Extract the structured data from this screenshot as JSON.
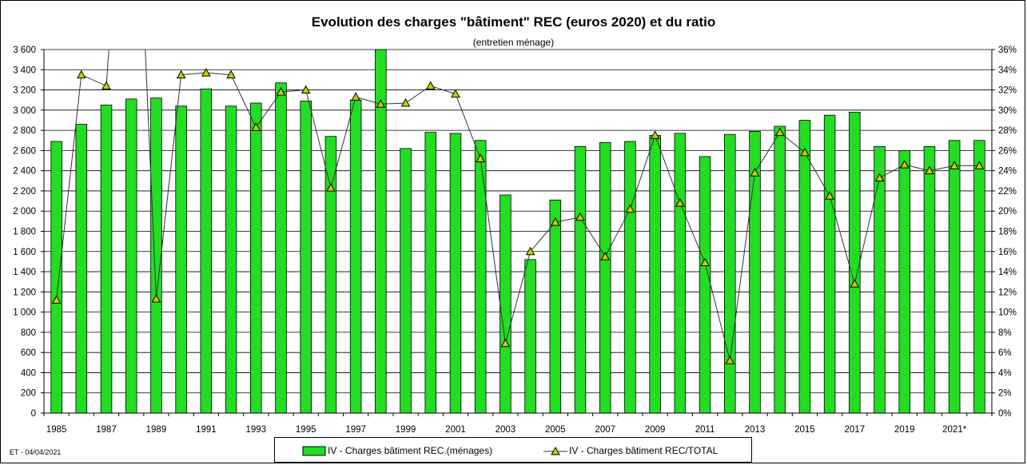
{
  "chart_data": {
    "type": "bar",
    "title": "Evolution des charges \"bâtiment\"  REC (euros 2020) et du ratio",
    "subtitle": "(entretien ménage)",
    "categories": [
      "1985",
      "1986",
      "1987",
      "1988",
      "1989",
      "1990",
      "1991",
      "1992",
      "1993",
      "1994",
      "1995",
      "1996",
      "1997",
      "1998",
      "1999",
      "2000",
      "2001",
      "2002",
      "2003",
      "2004",
      "2005",
      "2006",
      "2007",
      "2008",
      "2009",
      "2010",
      "2011",
      "2012",
      "2013",
      "2014",
      "2015",
      "2016",
      "2017",
      "2018",
      "2019",
      "2020",
      "2021*",
      "2022"
    ],
    "x_tick_labels": [
      "1985",
      "1987",
      "1989",
      "1991",
      "1993",
      "1995",
      "1997",
      "1999",
      "2001",
      "2003",
      "2005",
      "2007",
      "2009",
      "2011",
      "2013",
      "2015",
      "2017",
      "2019",
      "2021*"
    ],
    "series": [
      {
        "name": "IV - Charges  bâtiment REC.(ménages)",
        "type": "bar",
        "axis": "left",
        "color": "#22dd22",
        "values": [
          2690,
          2860,
          3050,
          3110,
          3120,
          3040,
          3210,
          3040,
          3070,
          3270,
          3090,
          2740,
          3100,
          3600,
          2620,
          2780,
          2770,
          2700,
          2160,
          1520,
          2110,
          2640,
          2680,
          2690,
          2750,
          2770,
          2540,
          2760,
          2790,
          2840,
          2900,
          2950,
          2980,
          2640,
          2600,
          2640,
          2700,
          2700
        ]
      },
      {
        "name": "IV - Charges  bâtiment REC/TOTAL",
        "type": "line",
        "axis": "right",
        "color": "#333333",
        "marker_color": "#cccc00",
        "values": [
          11.2,
          33.5,
          32.4,
          null,
          11.3,
          33.5,
          33.7,
          33.5,
          28.3,
          31.8,
          32.0,
          22.3,
          31.3,
          30.6,
          30.7,
          32.4,
          31.6,
          25.2,
          6.9,
          16.0,
          18.9,
          19.4,
          15.5,
          20.2,
          27.5,
          20.8,
          14.9,
          5.2,
          23.8,
          27.8,
          25.8,
          21.5,
          12.8,
          23.3,
          24.6,
          24.0,
          24.5,
          24.5
        ]
      }
    ],
    "ylim": [
      0,
      3600
    ],
    "y_ticks": [
      "0",
      "200",
      "400",
      "600",
      "800",
      "1 000",
      "1 200",
      "1 400",
      "1 600",
      "1 800",
      "2 000",
      "2 200",
      "2 400",
      "2 600",
      "2 800",
      "3 000",
      "3 200",
      "3 400",
      "3 600"
    ],
    "y2lim": [
      0,
      36
    ],
    "y2_ticks": [
      "0%",
      "2%",
      "4%",
      "6%",
      "8%",
      "10%",
      "12%",
      "14%",
      "16%",
      "18%",
      "20%",
      "22%",
      "24%",
      "26%",
      "28%",
      "30%",
      "32%",
      "34%",
      "36%"
    ],
    "grid": true,
    "legend_position": "bottom"
  },
  "footer_note": "ET - 04/04/2021"
}
